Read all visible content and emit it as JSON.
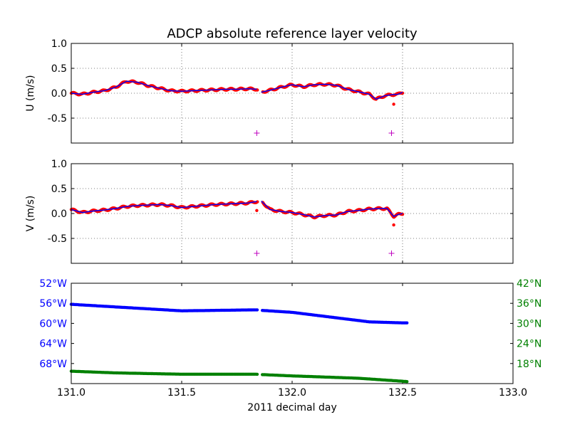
{
  "figure_title": "ADCP absolute reference layer velocity",
  "colors": {
    "vector_line": "#0000ff",
    "ensemble_dots": "#ff0000",
    "marker": "#bf00bf",
    "lon": "#0000ff",
    "lat": "#008000",
    "grid": "#555555"
  },
  "chart_data": [
    {
      "type": "line",
      "ylabel": "U (m/s)",
      "ylim": [
        -1.0,
        1.0
      ],
      "yticks": [
        "1.0",
        "0.5",
        "0.0",
        "-0.5"
      ],
      "xlim": [
        131.0,
        133.0
      ],
      "grid": true,
      "x": [
        131.0,
        131.05,
        131.1,
        131.15,
        131.2,
        131.25,
        131.3,
        131.35,
        131.4,
        131.45,
        131.5,
        131.55,
        131.6,
        131.65,
        131.7,
        131.75,
        131.8,
        131.84,
        131.86,
        131.9,
        131.95,
        132.0,
        132.05,
        132.1,
        132.15,
        132.2,
        132.25,
        132.3,
        132.35,
        132.38,
        132.42,
        132.45,
        132.48,
        132.5
      ],
      "series": [
        {
          "values": [
            0.0,
            -0.02,
            0.02,
            0.05,
            0.12,
            0.24,
            0.22,
            0.15,
            0.1,
            0.05,
            0.04,
            0.05,
            0.06,
            0.07,
            0.08,
            0.08,
            0.09,
            0.08,
            0.02,
            0.06,
            0.12,
            0.17,
            0.13,
            0.17,
            0.18,
            0.16,
            0.08,
            0.03,
            -0.02,
            -0.12,
            -0.05,
            -0.03,
            -0.02,
            0.02
          ]
        }
      ],
      "outliers": [
        {
          "x": 132.46,
          "y": -0.22
        }
      ],
      "markers": [
        {
          "x": 131.84,
          "y": -0.8
        },
        {
          "x": 132.45,
          "y": -0.8
        }
      ]
    },
    {
      "type": "line",
      "ylabel": "V (m/s)",
      "ylim": [
        -1.0,
        1.0
      ],
      "yticks": [
        "1.0",
        "0.5",
        "0.0",
        "-0.5"
      ],
      "xlim": [
        131.0,
        133.0
      ],
      "grid": true,
      "x": [
        131.0,
        131.05,
        131.1,
        131.15,
        131.2,
        131.25,
        131.3,
        131.35,
        131.4,
        131.45,
        131.5,
        131.55,
        131.6,
        131.65,
        131.7,
        131.75,
        131.8,
        131.84,
        131.86,
        131.9,
        131.95,
        132.0,
        132.05,
        132.1,
        132.15,
        132.2,
        132.25,
        132.3,
        132.35,
        132.4,
        132.43,
        132.46,
        132.48,
        132.5
      ],
      "series": [
        {
          "values": [
            0.08,
            0.02,
            0.05,
            0.07,
            0.1,
            0.14,
            0.16,
            0.17,
            0.18,
            0.16,
            0.12,
            0.14,
            0.16,
            0.18,
            0.19,
            0.2,
            0.21,
            0.24,
            0.25,
            0.08,
            0.04,
            0.02,
            -0.02,
            -0.07,
            -0.04,
            -0.03,
            0.04,
            0.06,
            0.09,
            0.1,
            0.1,
            -0.06,
            -0.02,
            0.0
          ]
        }
      ],
      "outliers": [
        {
          "x": 131.84,
          "y": 0.06
        },
        {
          "x": 132.46,
          "y": -0.23
        }
      ],
      "markers": [
        {
          "x": 131.84,
          "y": -0.8
        },
        {
          "x": 132.45,
          "y": -0.8
        }
      ]
    },
    {
      "type": "scatter",
      "xlabel": "2011 decimal day",
      "xlim": [
        131.0,
        133.0
      ],
      "xticks": [
        "131.0",
        "131.5",
        "132.0",
        "132.5",
        "133.0"
      ],
      "left_yticks": [
        "52°W",
        "56°W",
        "60°W",
        "64°W",
        "68°W"
      ],
      "right_yticks": [
        "42°N",
        "36°N",
        "30°N",
        "24°N",
        "18°N"
      ],
      "left_ylim": [
        -72.0,
        -52.0
      ],
      "right_ylim": [
        12.0,
        42.0
      ],
      "series": [
        {
          "name": "longitude",
          "x": [
            131.0,
            131.5,
            131.84,
            131.86,
            132.0,
            132.35,
            132.5,
            132.52
          ],
          "values": [
            -56.2,
            -57.5,
            -57.3,
            -57.4,
            -57.8,
            -59.7,
            -59.9,
            -59.9
          ]
        },
        {
          "name": "latitude",
          "x": [
            131.0,
            131.2,
            131.5,
            131.84,
            131.86,
            132.0,
            132.3,
            132.5,
            132.52
          ],
          "values": [
            15.7,
            15.2,
            14.8,
            14.8,
            14.7,
            14.3,
            13.6,
            12.7,
            12.6
          ]
        }
      ]
    }
  ]
}
